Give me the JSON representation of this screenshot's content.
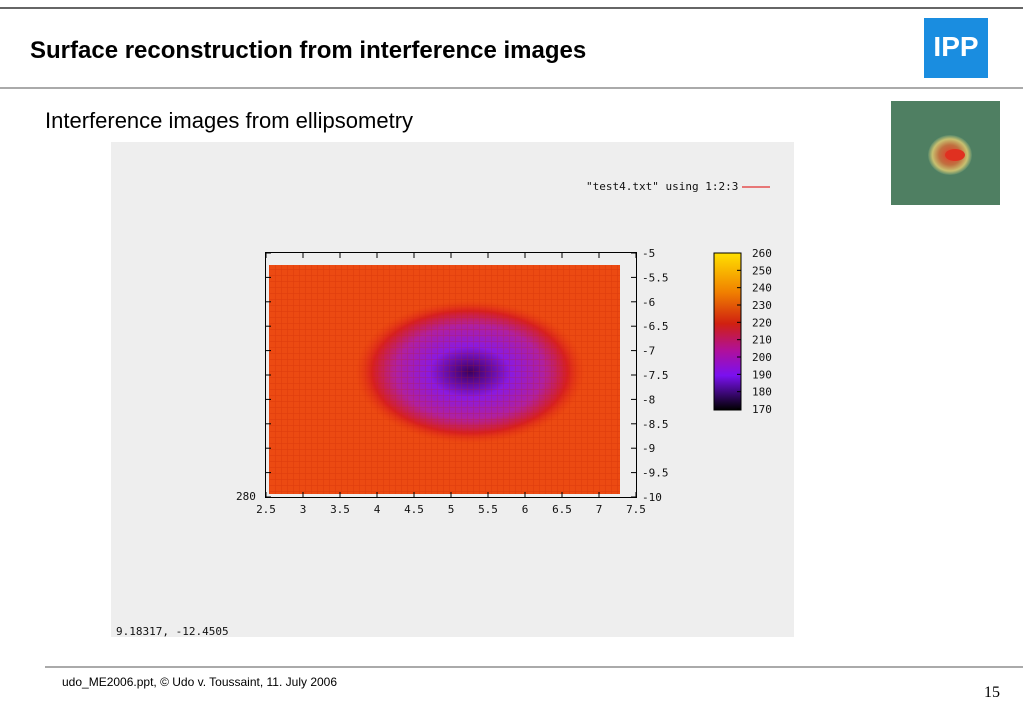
{
  "header": {
    "title": "Surface reconstruction from interference images",
    "logo": "IPP"
  },
  "subtitle": "Interference images from ellipsometry",
  "plot": {
    "legend": "\"test4.txt\" using 1:2:3",
    "xticks": [
      "2.5",
      "3",
      "3.5",
      "4",
      "4.5",
      "5",
      "5.5",
      "6",
      "6.5",
      "7",
      "7.5"
    ],
    "yticks": [
      "-5",
      "-5.5",
      "-6",
      "-6.5",
      "-7",
      "-7.5",
      "-8",
      "-8.5",
      "-9",
      "-9.5",
      "-10"
    ],
    "colorbar_ticks": [
      "260",
      "250",
      "240",
      "230",
      "220",
      "210",
      "200",
      "190",
      "180",
      "170"
    ],
    "corner_label": "280",
    "readout": "9.18317, -12.4505"
  },
  "footer": {
    "text": "udo_ME2006.ppt, © Udo v. Toussaint, 11. July 2006",
    "page": "15"
  }
}
